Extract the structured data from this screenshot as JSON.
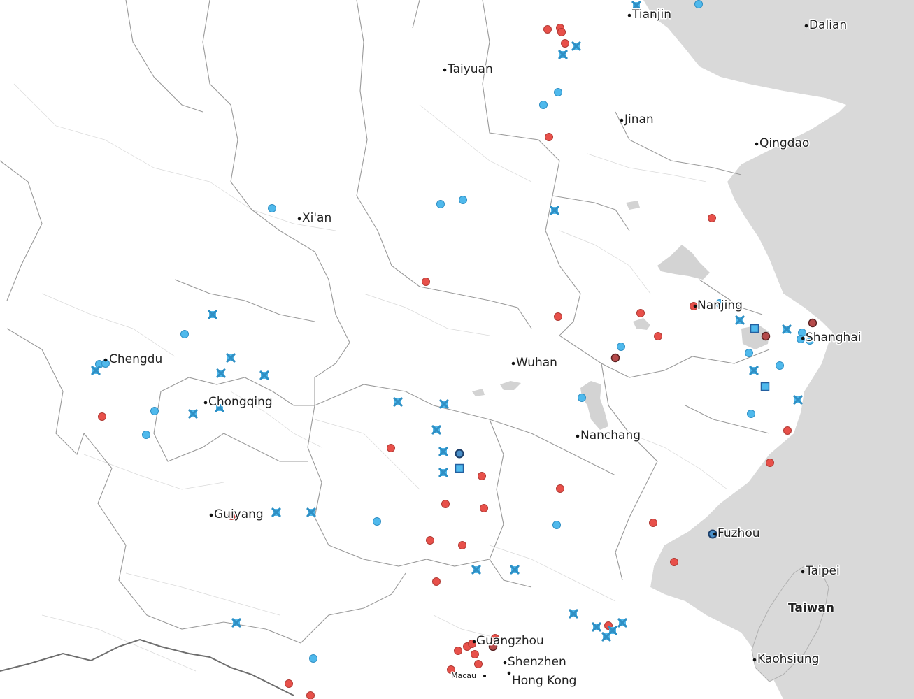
{
  "map": {
    "background": "#ffffff",
    "sea_color": "#d9d9d9",
    "lake_color": "#d3d3d3",
    "cities": [
      {
        "id": "tianjin",
        "name": "Tianjin",
        "small": false,
        "bold": false
      },
      {
        "id": "dalian",
        "name": "Dalian",
        "small": false,
        "bold": false
      },
      {
        "id": "taiyuan",
        "name": "Taiyuan",
        "small": false,
        "bold": false
      },
      {
        "id": "jinan",
        "name": "Jinan",
        "small": false,
        "bold": false
      },
      {
        "id": "qingdao",
        "name": "Qingdao",
        "small": false,
        "bold": false
      },
      {
        "id": "xian",
        "name": "Xi'an",
        "small": false,
        "bold": false
      },
      {
        "id": "nanjing",
        "name": "Nanjing",
        "small": false,
        "bold": false
      },
      {
        "id": "shanghai",
        "name": "Shanghai",
        "small": false,
        "bold": false
      },
      {
        "id": "chengdu",
        "name": "Chengdu",
        "small": false,
        "bold": false
      },
      {
        "id": "wuhan",
        "name": "Wuhan",
        "small": false,
        "bold": false
      },
      {
        "id": "chongqing",
        "name": "Chongqing",
        "small": false,
        "bold": false
      },
      {
        "id": "nanchang",
        "name": "Nanchang",
        "small": false,
        "bold": false
      },
      {
        "id": "guiyang",
        "name": "Guiyang",
        "small": false,
        "bold": false
      },
      {
        "id": "fuzhou",
        "name": "Fuzhou",
        "small": false,
        "bold": false
      },
      {
        "id": "taipei",
        "name": "Taipei",
        "small": false,
        "bold": false
      },
      {
        "id": "taiwan",
        "name": "Taiwan",
        "small": false,
        "bold": true
      },
      {
        "id": "guangzhou",
        "name": "Guangzhou",
        "small": false,
        "bold": false
      },
      {
        "id": "shenzhen",
        "name": "Shenzhen",
        "small": false,
        "bold": false
      },
      {
        "id": "kaohsiung",
        "name": "Kaohsiung",
        "small": false,
        "bold": false
      },
      {
        "id": "macau",
        "name": "Macau",
        "small": true,
        "bold": false
      },
      {
        "id": "hongkong",
        "name": "Hong Kong",
        "small": false,
        "bold": false
      }
    ],
    "marker_types": {
      "red_circle": "#e8504a",
      "blue_circle": "#4fb9ec",
      "blue_cross": "#4fb9ec",
      "blue_square": "#4fb9ec"
    }
  }
}
